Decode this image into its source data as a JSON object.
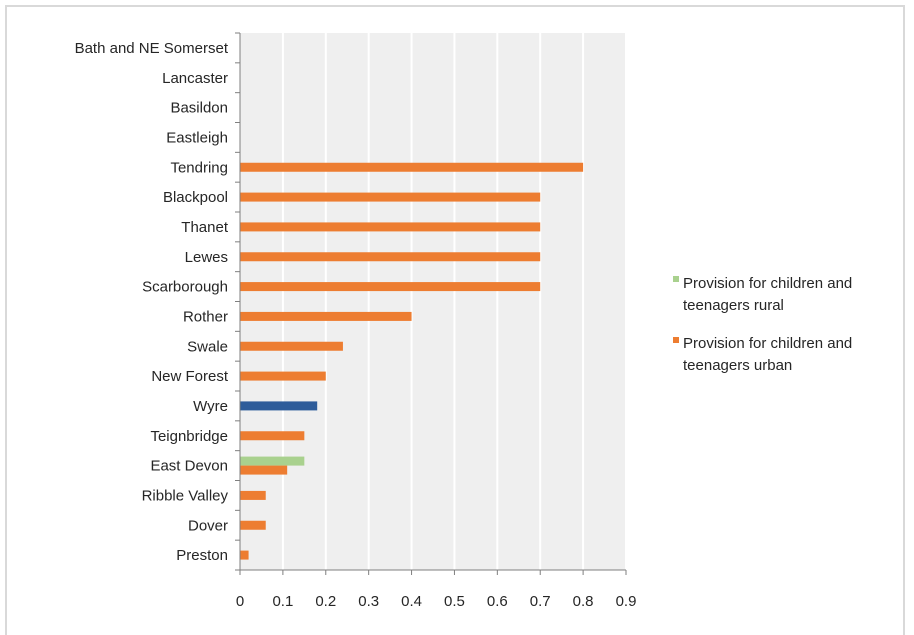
{
  "chart_data": {
    "type": "bar",
    "orientation": "horizontal",
    "categories": [
      "Bath and NE Somerset",
      "Lancaster",
      "Basildon",
      "Eastleigh",
      "Tendring",
      "Blackpool",
      "Thanet",
      "Lewes",
      "Scarborough",
      "Rother",
      "Swale",
      "New Forest",
      "Wyre",
      "Teignbridge",
      "East Devon",
      "Ribble Valley",
      "Dover",
      "Preston"
    ],
    "series": [
      {
        "name": "Provision for children and teenagers rural",
        "color": "#a9d18e",
        "values": [
          null,
          null,
          null,
          null,
          null,
          null,
          null,
          null,
          null,
          null,
          null,
          null,
          null,
          null,
          0.15,
          null,
          null,
          null
        ]
      },
      {
        "name": "Provision for children and teenagers urban",
        "color": "#ed7d31",
        "values": [
          null,
          null,
          null,
          null,
          0.8,
          0.7,
          0.7,
          0.7,
          0.7,
          0.4,
          0.24,
          0.2,
          0.18,
          0.15,
          0.11,
          0.06,
          0.06,
          0.02
        ]
      }
    ],
    "highlight": {
      "category": "Wyre",
      "color": "#2e5c9a"
    },
    "xticks": [
      "0",
      "0.1",
      "0.2",
      "0.3",
      "0.4",
      "0.5",
      "0.6",
      "0.7",
      "0.8",
      "0.9"
    ],
    "xlim": [
      0,
      0.9
    ],
    "grid": "vertical",
    "legend_position": "right"
  },
  "legend": {
    "rural_line1": "Provision for children and",
    "rural_line2": "teenagers rural",
    "urban_line1": "Provision for children and",
    "urban_line2": "teenagers urban"
  }
}
